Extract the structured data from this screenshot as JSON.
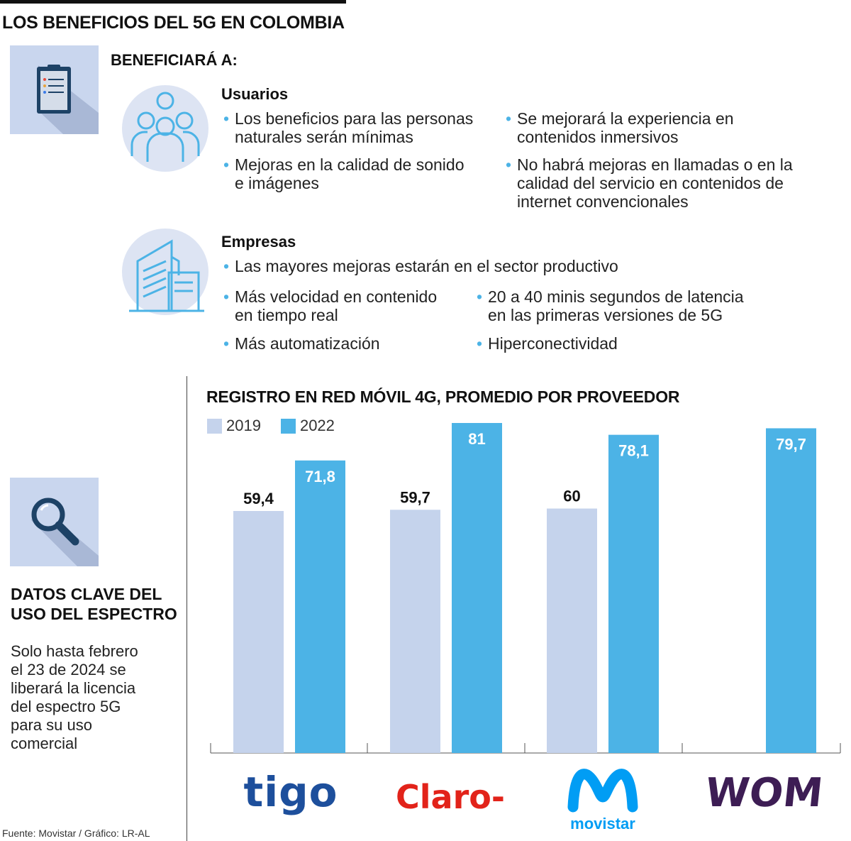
{
  "title": "LOS BENEFICIOS DEL 5G EN COLOMBIA",
  "benefits": {
    "heading": "BENEFICIARÁ A:",
    "usuarios": {
      "title": "Usuarios",
      "bullets": [
        "Los beneficios para las personas\nnaturales serán mínimas",
        "Se mejorará la experiencia en\ncontenidos inmersivos",
        "Mejoras en la calidad de sonido\ne imágenes",
        "No habrá mejoras en llamadas o en la\ncalidad del servicio en contenidos de\ninternet convencionales"
      ]
    },
    "empresas": {
      "title": "Empresas",
      "bullets": [
        "Las mayores mejoras estarán en el sector productivo",
        "Más velocidad en contenido\nen tiempo real",
        "20 a 40 minis segundos de latencia\nen las primeras versiones de 5G",
        "Más automatización",
        "Hiperconectividad"
      ]
    }
  },
  "side": {
    "heading": "DATOS CLAVE DEL\nUSO DEL ESPECTRO",
    "text": "Solo hasta febrero\nel 23 de 2024 se\nliberará la licencia\ndel espectro 5G\npara su uso\ncomercial"
  },
  "source": "Fuente: Movistar / Gráfico: LR-AL",
  "chart_data": {
    "type": "bar",
    "title": "REGISTRO EN RED MÓVIL 4G, PROMEDIO POR PROVEEDOR",
    "categories": [
      "tigo",
      "Claro",
      "movistar",
      "WOM"
    ],
    "series": [
      {
        "name": "2019",
        "color": "#c5d3ec",
        "values": [
          59.4,
          59.7,
          60,
          null
        ],
        "labels": [
          "59,4",
          "59,7",
          "60",
          ""
        ]
      },
      {
        "name": "2022",
        "color": "#4cb3e6",
        "values": [
          71.8,
          81,
          78.1,
          79.7
        ],
        "labels": [
          "71,8",
          "81",
          "78,1",
          "79,7"
        ]
      }
    ],
    "ylim": [
      0,
      81
    ],
    "grid": false,
    "legend": "top-left",
    "value_labels": true
  },
  "icons": {
    "clipboard": "clipboard-icon",
    "people": "people-group-icon",
    "building": "building-icon",
    "magnifier": "magnifier-icon"
  },
  "logos": {
    "tigo": "tigo",
    "claro": "Claro",
    "movistar": "movistar",
    "wom": "WOM"
  }
}
